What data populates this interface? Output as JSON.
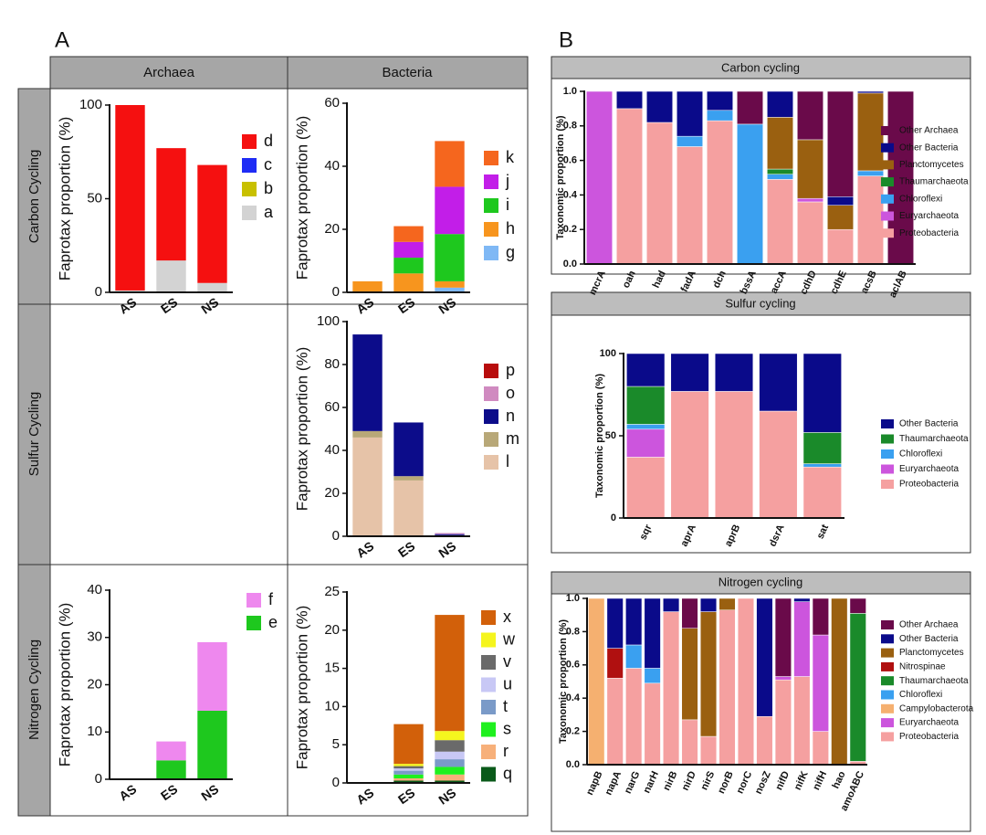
{
  "figure": {
    "panel_labels": [
      "A",
      "B"
    ],
    "columns": [
      "Archaea",
      "Bacteria"
    ],
    "rows": [
      "Carbon Cycling",
      "Sulfur Cycling",
      "Nitrogen Cycling"
    ]
  },
  "chart_data": [
    {
      "type": "bar",
      "stacked": true,
      "ylabel": "Faprotax proportion (%)",
      "categories": [
        "AS",
        "ES",
        "NS"
      ],
      "ylim": [
        0,
        100
      ],
      "yticks": [
        0,
        50,
        100
      ],
      "series": [
        {
          "name": "a",
          "color": "#d3d3d3",
          "values": [
            1,
            17,
            5
          ]
        },
        {
          "name": "b",
          "color": "#c8c000",
          "values": [
            0,
            0,
            0
          ]
        },
        {
          "name": "c",
          "color": "#1f2cf5",
          "values": [
            0,
            0,
            0
          ]
        },
        {
          "name": "d",
          "color": "#f51010",
          "values": [
            99,
            60,
            63
          ]
        }
      ]
    },
    {
      "type": "bar",
      "stacked": true,
      "ylabel": "Faprotax proportion (%)",
      "categories": [
        "AS",
        "ES",
        "NS"
      ],
      "ylim": [
        0,
        60
      ],
      "yticks": [
        0,
        20,
        40,
        60
      ],
      "series": [
        {
          "name": "g",
          "color": "#7fb8f5",
          "values": [
            0,
            0,
            1.5
          ]
        },
        {
          "name": "h",
          "color": "#f7951e",
          "values": [
            3.5,
            6,
            2
          ]
        },
        {
          "name": "i",
          "color": "#1ec81e",
          "values": [
            0,
            5,
            15
          ]
        },
        {
          "name": "j",
          "color": "#c21ee8",
          "values": [
            0,
            5,
            15
          ]
        },
        {
          "name": "k",
          "color": "#f5661e",
          "values": [
            0,
            5,
            14.5
          ]
        }
      ]
    },
    {
      "type": "bar",
      "stacked": true,
      "ylabel": "Faprotax proportion (%)",
      "categories": [
        "AS",
        "ES",
        "NS"
      ],
      "ylim": [
        0,
        100
      ],
      "yticks": [
        0,
        20,
        40,
        60,
        80,
        100
      ],
      "series": [
        {
          "name": "l",
          "color": "#e6c3a8",
          "values": [
            46,
            26,
            0.5
          ]
        },
        {
          "name": "m",
          "color": "#b8a878",
          "values": [
            3,
            2,
            0
          ]
        },
        {
          "name": "n",
          "color": "#0c0c8a",
          "values": [
            45,
            25,
            0.5
          ]
        },
        {
          "name": "o",
          "color": "#d08ac0",
          "values": [
            0,
            0,
            0.5
          ]
        },
        {
          "name": "p",
          "color": "#b80c0c",
          "values": [
            0,
            0,
            0
          ]
        }
      ]
    },
    {
      "type": "bar",
      "stacked": true,
      "ylabel": "Faprotax proportion (%)",
      "categories": [
        "AS",
        "ES",
        "NS"
      ],
      "ylim": [
        0,
        40
      ],
      "yticks": [
        0,
        10,
        20,
        30,
        40
      ],
      "series": [
        {
          "name": "e",
          "color": "#1ec81e",
          "values": [
            0,
            4,
            14.5
          ]
        },
        {
          "name": "f",
          "color": "#ee88ee",
          "values": [
            0,
            4,
            14.5
          ]
        }
      ]
    },
    {
      "type": "bar",
      "stacked": true,
      "ylabel": "Faprotax proportion (%)",
      "categories": [
        "AS",
        "ES",
        "NS"
      ],
      "ylim": [
        0,
        25
      ],
      "yticks": [
        0,
        5,
        10,
        15,
        20,
        25
      ],
      "series": [
        {
          "name": "q",
          "color": "#0a5a1a",
          "values": [
            0,
            0.3,
            0.3
          ]
        },
        {
          "name": "r",
          "color": "#f7b07a",
          "values": [
            0,
            0.3,
            0.8
          ]
        },
        {
          "name": "s",
          "color": "#1ef01e",
          "values": [
            0,
            0.5,
            1
          ]
        },
        {
          "name": "t",
          "color": "#7a9ac8",
          "values": [
            0,
            0.5,
            1
          ]
        },
        {
          "name": "u",
          "color": "#c8c8f5",
          "values": [
            0,
            0.3,
            1
          ]
        },
        {
          "name": "v",
          "color": "#6a6a6a",
          "values": [
            0,
            0.3,
            1.5
          ]
        },
        {
          "name": "w",
          "color": "#f5f51e",
          "values": [
            0,
            0.3,
            1.2
          ]
        },
        {
          "name": "x",
          "color": "#d2600a",
          "values": [
            0,
            5.2,
            15.2
          ]
        }
      ]
    },
    {
      "type": "bar",
      "stacked": true,
      "title": "Carbon cycling",
      "ylabel": "Taxonomic proportion (%)",
      "categories": [
        "mcrA",
        "oah",
        "had",
        "fadA",
        "dch",
        "bssA",
        "accA",
        "cdhD",
        "cdhE",
        "acsB",
        "aclAB"
      ],
      "ylim": [
        0,
        1
      ],
      "yticks": [
        {
          "value": 0,
          "label": "0.0"
        },
        0.2,
        0.4,
        0.6,
        0.8,
        {
          "value": 1,
          "label": "1.0"
        }
      ],
      "series": [
        {
          "name": "Proteobacteria",
          "color": "#f5a0a0",
          "values": [
            0,
            0.9,
            0.82,
            0.68,
            0.83,
            0,
            0.49,
            0.36,
            0.2,
            0.51,
            0
          ]
        },
        {
          "name": "Euryarchaeota",
          "color": "#cc55dd",
          "values": [
            1,
            0,
            0,
            0,
            0,
            0,
            0,
            0.02,
            0,
            0,
            0
          ]
        },
        {
          "name": "Chloroflexi",
          "color": "#3aa0f0",
          "values": [
            0,
            0,
            0,
            0.06,
            0.06,
            0.81,
            0.03,
            0,
            0,
            0.03,
            0
          ]
        },
        {
          "name": "Thaumarchaeota",
          "color": "#1a8a2a",
          "values": [
            0,
            0,
            0,
            0,
            0,
            0,
            0.03,
            0,
            0,
            0,
            0
          ]
        },
        {
          "name": "Planctomycetes",
          "color": "#9a6010",
          "values": [
            0,
            0,
            0,
            0,
            0,
            0,
            0.3,
            0.34,
            0.14,
            0.45,
            0
          ]
        },
        {
          "name": "Other Bacteria",
          "color": "#0a0a8a",
          "values": [
            0,
            0.1,
            0.18,
            0.26,
            0.11,
            0,
            0.15,
            0,
            0.05,
            0.01,
            0
          ]
        },
        {
          "name": "Other Archaea",
          "color": "#6a0a4a",
          "values": [
            0,
            0,
            0,
            0,
            0,
            0.19,
            0,
            0.28,
            0.61,
            0,
            1
          ]
        }
      ]
    },
    {
      "type": "bar",
      "stacked": true,
      "title": "Sulfur cycling",
      "ylabel": "Taxonomic proportion (%)",
      "categories": [
        "sqr",
        "aprA",
        "aprB",
        "dsrA",
        "sat"
      ],
      "ylim": [
        0,
        100
      ],
      "yticks": [
        0,
        50,
        100
      ],
      "series": [
        {
          "name": "Proteobacteria",
          "color": "#f5a0a0",
          "values": [
            37,
            77,
            77,
            65,
            31
          ]
        },
        {
          "name": "Euryarchaeota",
          "color": "#cc55dd",
          "values": [
            17,
            0,
            0,
            0,
            0
          ]
        },
        {
          "name": "Chloroflexi",
          "color": "#3aa0f0",
          "values": [
            3,
            0,
            0,
            0,
            2
          ]
        },
        {
          "name": "Thaumarchaeota",
          "color": "#1a8a2a",
          "values": [
            23,
            0,
            0,
            0,
            19
          ]
        },
        {
          "name": "Other Bacteria",
          "color": "#0a0a8a",
          "values": [
            20,
            23,
            23,
            35,
            48
          ]
        }
      ]
    },
    {
      "type": "bar",
      "stacked": true,
      "title": "Nitrogen cycling",
      "ylabel": "Taxonomic proportion (%)",
      "categories": [
        "napB",
        "napA",
        "narG",
        "narH",
        "nirB",
        "nirD",
        "nirS",
        "norB",
        "norC",
        "nosZ",
        "nifD",
        "nifK",
        "nifH",
        "hao",
        "amoABC"
      ],
      "ylim": [
        0,
        1
      ],
      "yticks": [
        {
          "value": 0,
          "label": "0.0"
        },
        0.2,
        0.4,
        0.6,
        0.8,
        {
          "value": 1,
          "label": "1.0"
        }
      ],
      "series": [
        {
          "name": "Proteobacteria",
          "color": "#f5a0a0",
          "values": [
            0,
            0.52,
            0.58,
            0.49,
            0.92,
            0.27,
            0.17,
            0.93,
            1,
            0.29,
            0.51,
            0.53,
            0.2,
            0,
            0.02
          ]
        },
        {
          "name": "Euryarchaeota",
          "color": "#cc55dd",
          "values": [
            0,
            0,
            0,
            0,
            0,
            0,
            0,
            0,
            0,
            0,
            0.02,
            0.45,
            0.58,
            0,
            0
          ]
        },
        {
          "name": "Campylobacterota",
          "color": "#f5b070",
          "values": [
            1,
            0,
            0,
            0,
            0,
            0,
            0,
            0,
            0,
            0,
            0,
            0,
            0,
            0,
            0
          ]
        },
        {
          "name": "Chloroflexi",
          "color": "#3aa0f0",
          "values": [
            0,
            0,
            0.14,
            0.09,
            0,
            0,
            0,
            0,
            0,
            0,
            0,
            0,
            0,
            0,
            0
          ]
        },
        {
          "name": "Thaumarchaeota",
          "color": "#1a8a2a",
          "values": [
            0,
            0,
            0,
            0,
            0,
            0,
            0,
            0,
            0,
            0,
            0,
            0,
            0,
            0,
            0.89
          ]
        },
        {
          "name": "Nitrospinae",
          "color": "#b01010",
          "values": [
            0,
            0.18,
            0,
            0,
            0,
            0,
            0,
            0,
            0,
            0,
            0,
            0,
            0,
            0,
            0
          ]
        },
        {
          "name": "Planctomycetes",
          "color": "#9a6010",
          "values": [
            0,
            0,
            0,
            0,
            0,
            0.55,
            0.75,
            0.07,
            0,
            0,
            0,
            0,
            0,
            1,
            0
          ]
        },
        {
          "name": "Other Bacteria",
          "color": "#0a0a8a",
          "values": [
            0,
            0.3,
            0.28,
            0.42,
            0.08,
            0,
            0.08,
            0,
            0,
            0.71,
            0,
            0.02,
            0,
            0,
            0
          ]
        },
        {
          "name": "Other Archaea",
          "color": "#6a0a4a",
          "values": [
            0,
            0,
            0,
            0,
            0,
            0.18,
            0,
            0,
            0,
            0,
            0.47,
            0,
            0.22,
            0,
            0.09
          ]
        }
      ]
    }
  ]
}
